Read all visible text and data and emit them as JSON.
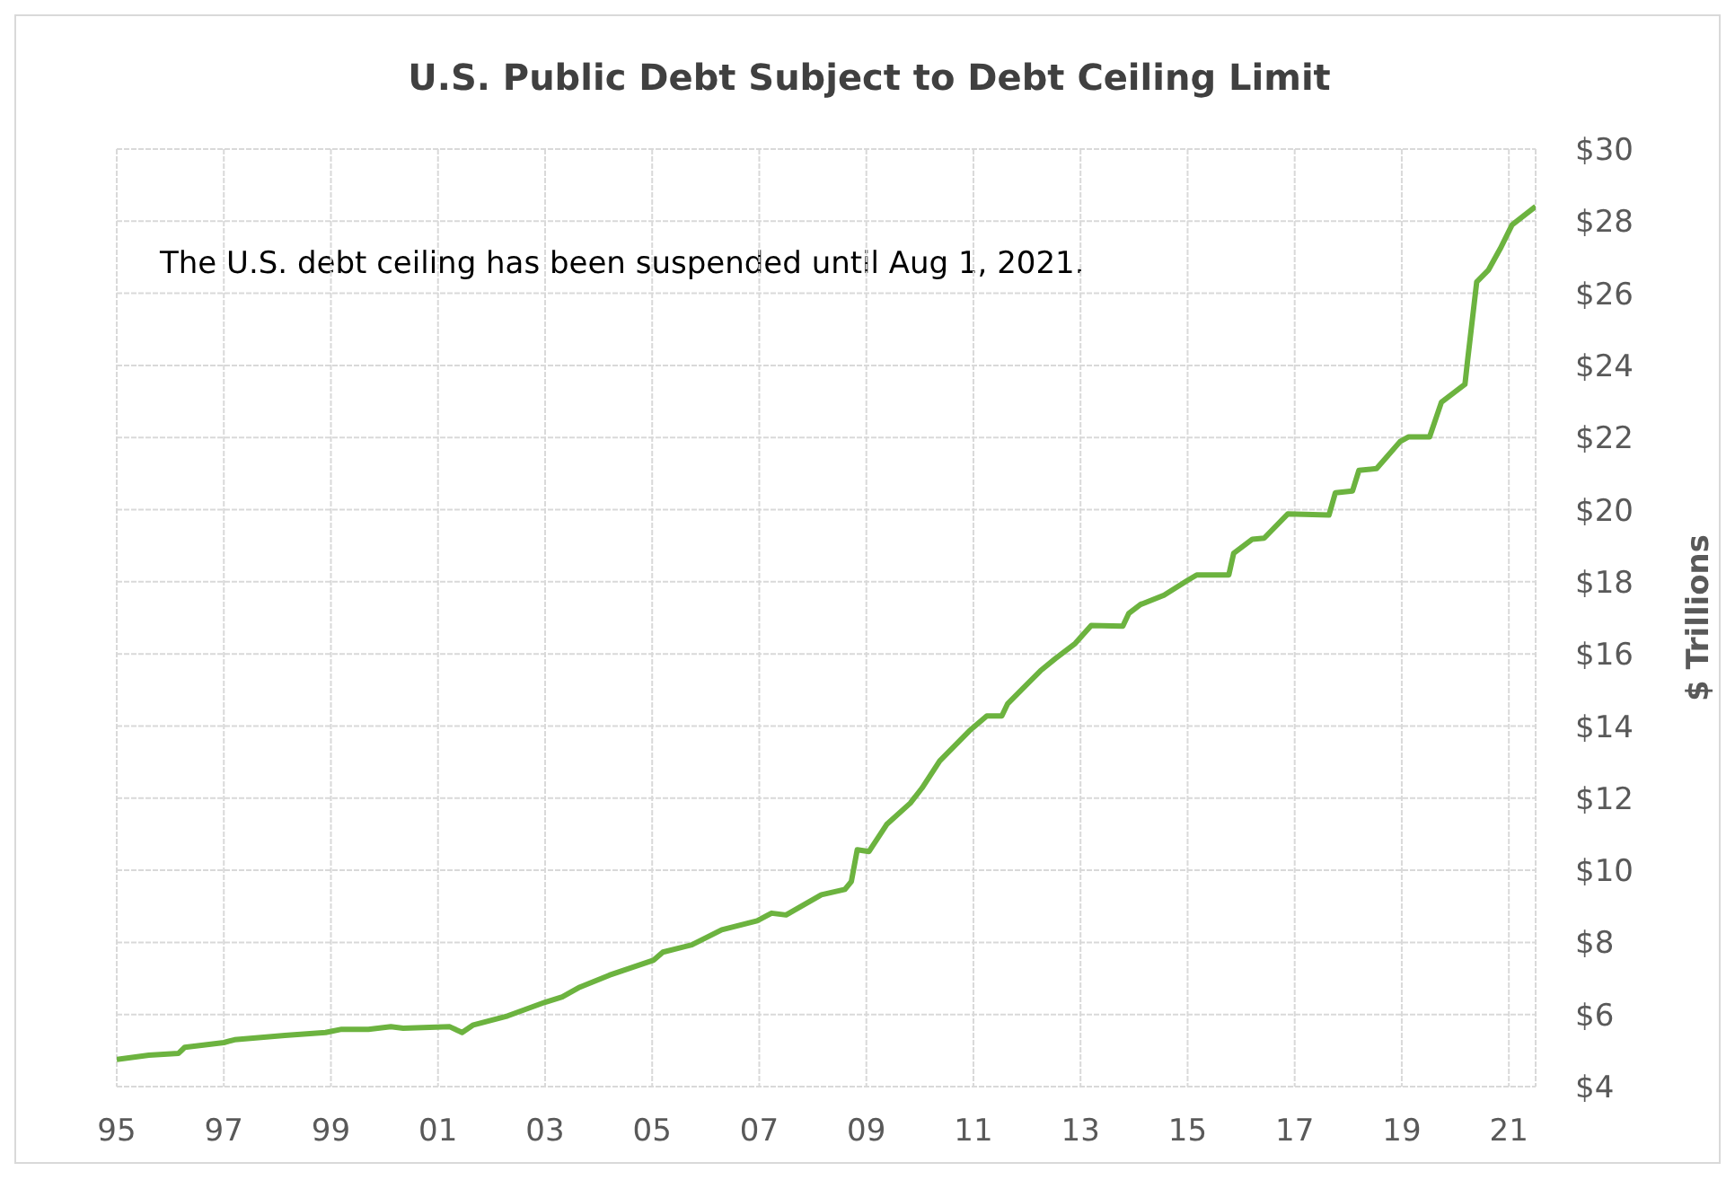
{
  "chart_data": {
    "type": "line",
    "title": "U.S. Public Debt Subject to Debt Ceiling Limit",
    "ylabel": "$ Trillions",
    "annotations": [
      "The U.S. debt ceiling has been suspended until Aug 1, 2021."
    ],
    "x": [
      1995.0,
      1995.6,
      1996.15,
      1996.27,
      1997.0,
      1997.2,
      1998.14,
      1998.9,
      1999.2,
      1999.7,
      2000.12,
      2000.35,
      2001.22,
      2001.45,
      2001.66,
      2002.3,
      2003.0,
      2003.32,
      2003.65,
      2004.2,
      2005.03,
      2005.2,
      2005.74,
      2006.3,
      2006.96,
      2007.23,
      2007.5,
      2008.16,
      2008.6,
      2008.72,
      2008.83,
      2009.05,
      2009.38,
      2009.82,
      2010.04,
      2010.37,
      2010.92,
      2011.25,
      2011.53,
      2011.64,
      2012.25,
      2012.53,
      2012.9,
      2013.2,
      2013.79,
      2013.9,
      2014.12,
      2014.56,
      2015.0,
      2015.17,
      2015.77,
      2015.86,
      2016.21,
      2016.43,
      2016.87,
      2017.64,
      2017.76,
      2018.08,
      2018.2,
      2018.53,
      2018.97,
      2019.13,
      2019.52,
      2019.74,
      2020.18,
      2020.23,
      2020.4,
      2020.62,
      2020.84,
      2021.06,
      2021.5
    ],
    "series": [
      {
        "color": "#6cb33f",
        "values": [
          4.75,
          4.87,
          4.92,
          5.09,
          5.22,
          5.3,
          5.42,
          5.5,
          5.59,
          5.59,
          5.66,
          5.62,
          5.66,
          5.5,
          5.71,
          5.96,
          6.34,
          6.49,
          6.76,
          7.09,
          7.51,
          7.73,
          7.93,
          8.35,
          8.6,
          8.81,
          8.76,
          9.32,
          9.47,
          9.69,
          10.57,
          10.52,
          11.27,
          11.86,
          12.28,
          13.03,
          13.86,
          14.28,
          14.28,
          14.62,
          15.53,
          15.87,
          16.29,
          16.79,
          16.77,
          17.12,
          17.37,
          17.63,
          18.04,
          18.19,
          18.19,
          18.79,
          19.18,
          19.21,
          19.88,
          19.85,
          20.47,
          20.52,
          21.09,
          21.14,
          21.89,
          22.02,
          22.02,
          22.98,
          23.48,
          24.15,
          26.32,
          26.65,
          27.24,
          27.9,
          28.41
        ]
      }
    ],
    "xlim": [
      1995,
      2021.5
    ],
    "xticks": [
      {
        "value": 1995,
        "label": "95"
      },
      {
        "value": 1997,
        "label": "97"
      },
      {
        "value": 1999,
        "label": "99"
      },
      {
        "value": 2001,
        "label": "01"
      },
      {
        "value": 2003,
        "label": "03"
      },
      {
        "value": 2005,
        "label": "05"
      },
      {
        "value": 2007,
        "label": "07"
      },
      {
        "value": 2009,
        "label": "09"
      },
      {
        "value": 2011,
        "label": "11"
      },
      {
        "value": 2013,
        "label": "13"
      },
      {
        "value": 2015,
        "label": "15"
      },
      {
        "value": 2017,
        "label": "17"
      },
      {
        "value": 2019,
        "label": "19"
      },
      {
        "value": 2021,
        "label": "21"
      }
    ],
    "ylim": [
      4,
      30
    ],
    "yticks": [
      {
        "value": 4,
        "label": "$4"
      },
      {
        "value": 6,
        "label": "$6"
      },
      {
        "value": 8,
        "label": "$8"
      },
      {
        "value": 10,
        "label": "$10"
      },
      {
        "value": 12,
        "label": "$12"
      },
      {
        "value": 14,
        "label": "$14"
      },
      {
        "value": 16,
        "label": "$16"
      },
      {
        "value": 18,
        "label": "$18"
      },
      {
        "value": 20,
        "label": "$20"
      },
      {
        "value": 22,
        "label": "$22"
      },
      {
        "value": 24,
        "label": "$24"
      },
      {
        "value": 26,
        "label": "$26"
      },
      {
        "value": 28,
        "label": "$28"
      },
      {
        "value": 30,
        "label": "$30"
      }
    ],
    "grid": true,
    "marker": "none",
    "line_style": "solid"
  }
}
